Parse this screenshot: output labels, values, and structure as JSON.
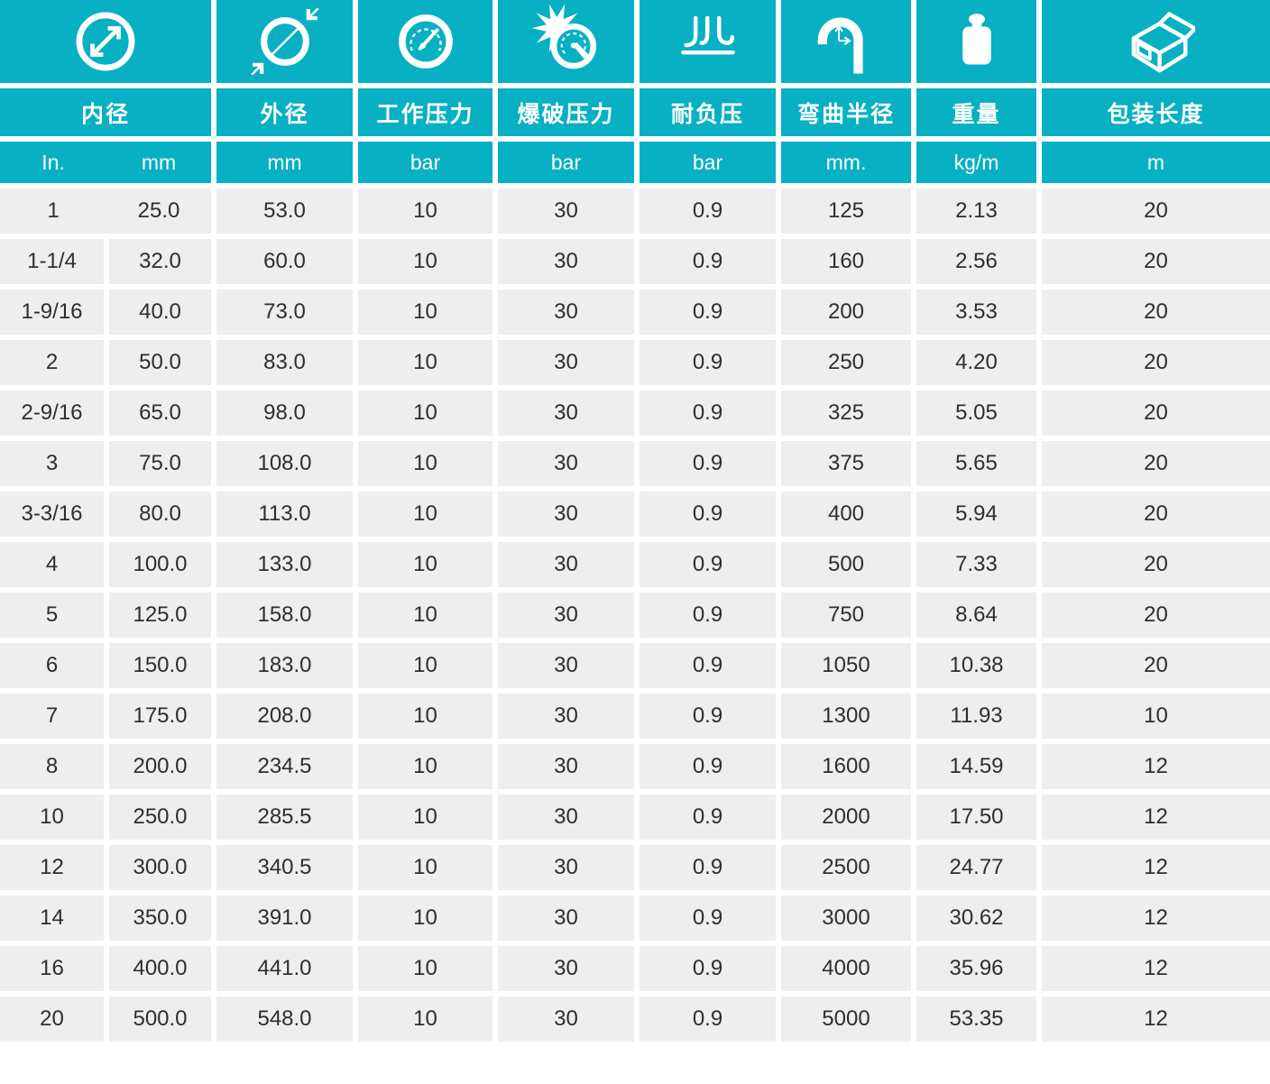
{
  "theme": {
    "accent_teal": "#07b0c3",
    "row_background": "#eeeeee",
    "text_color": "#2e2e2e"
  },
  "table": {
    "columns": [
      {
        "key": "inner-diameter",
        "label": "内径",
        "icon": "inner-diameter-icon",
        "units": [
          "In.",
          "mm"
        ]
      },
      {
        "key": "outer-diameter",
        "label": "外径",
        "icon": "outer-diameter-icon",
        "units": [
          "mm"
        ]
      },
      {
        "key": "working-pressure",
        "label": "工作压力",
        "icon": "pressure-gauge-icon",
        "units": [
          "bar"
        ]
      },
      {
        "key": "burst-pressure",
        "label": "爆破压力",
        "icon": "burst-pressure-icon",
        "units": [
          "bar"
        ]
      },
      {
        "key": "vacuum-resistance",
        "label": "耐负压",
        "icon": "vacuum-icon",
        "units": [
          "bar"
        ]
      },
      {
        "key": "bend-radius",
        "label": "弯曲半径",
        "icon": "bend-radius-icon",
        "units": [
          "mm."
        ]
      },
      {
        "key": "weight",
        "label": "重量",
        "icon": "weight-icon",
        "units": [
          "kg/m"
        ]
      },
      {
        "key": "package-length",
        "label": "包装长度",
        "icon": "package-box-icon",
        "units": [
          "m"
        ]
      }
    ],
    "rows": [
      [
        "1",
        "25.0",
        "53.0",
        "10",
        "30",
        "0.9",
        "125",
        "2.13",
        "20"
      ],
      [
        "1-1/4",
        "32.0",
        "60.0",
        "10",
        "30",
        "0.9",
        "160",
        "2.56",
        "20"
      ],
      [
        "1-9/16",
        "40.0",
        "73.0",
        "10",
        "30",
        "0.9",
        "200",
        "3.53",
        "20"
      ],
      [
        "2",
        "50.0",
        "83.0",
        "10",
        "30",
        "0.9",
        "250",
        "4.20",
        "20"
      ],
      [
        "2-9/16",
        "65.0",
        "98.0",
        "10",
        "30",
        "0.9",
        "325",
        "5.05",
        "20"
      ],
      [
        "3",
        "75.0",
        "108.0",
        "10",
        "30",
        "0.9",
        "375",
        "5.65",
        "20"
      ],
      [
        "3-3/16",
        "80.0",
        "113.0",
        "10",
        "30",
        "0.9",
        "400",
        "5.94",
        "20"
      ],
      [
        "4",
        "100.0",
        "133.0",
        "10",
        "30",
        "0.9",
        "500",
        "7.33",
        "20"
      ],
      [
        "5",
        "125.0",
        "158.0",
        "10",
        "30",
        "0.9",
        "750",
        "8.64",
        "20"
      ],
      [
        "6",
        "150.0",
        "183.0",
        "10",
        "30",
        "0.9",
        "1050",
        "10.38",
        "20"
      ],
      [
        "7",
        "175.0",
        "208.0",
        "10",
        "30",
        "0.9",
        "1300",
        "11.93",
        "10"
      ],
      [
        "8",
        "200.0",
        "234.5",
        "10",
        "30",
        "0.9",
        "1600",
        "14.59",
        "12"
      ],
      [
        "10",
        "250.0",
        "285.5",
        "10",
        "30",
        "0.9",
        "2000",
        "17.50",
        "12"
      ],
      [
        "12",
        "300.0",
        "340.5",
        "10",
        "30",
        "0.9",
        "2500",
        "24.77",
        "12"
      ],
      [
        "14",
        "350.0",
        "391.0",
        "10",
        "30",
        "0.9",
        "3000",
        "30.62",
        "12"
      ],
      [
        "16",
        "400.0",
        "441.0",
        "10",
        "30",
        "0.9",
        "4000",
        "35.96",
        "12"
      ],
      [
        "20",
        "500.0",
        "548.0",
        "10",
        "30",
        "0.9",
        "5000",
        "53.35",
        "12"
      ]
    ]
  }
}
